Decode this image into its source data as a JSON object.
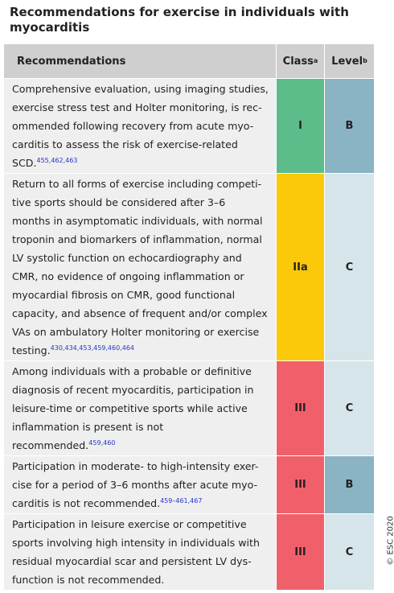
{
  "title": [
    "Recommendations for exercise in individuals with",
    "myocarditis"
  ],
  "header": {
    "recommendations": "Recommendations",
    "class": "Class",
    "class_note": "a",
    "level": "Level",
    "level_note": "b"
  },
  "rows": [
    {
      "lines": [
        "Comprehensive evaluation, using imaging studies,",
        "exercise stress test and Holter monitoring, is rec-",
        "ommended following recovery from acute myo-",
        "carditis to assess the risk of exercise-related",
        "SCD."
      ],
      "refs": "455,462,463",
      "class": "I",
      "level": "B",
      "class_color": "#5cbd8a",
      "level_color": "#8ab4c3"
    },
    {
      "lines": [
        "Return to all forms of exercise including competi-",
        "tive sports should be considered after 3–6",
        "months in asymptomatic individuals, with normal",
        "troponin and biomarkers of inflammation, normal",
        "LV systolic function on echocardiography and",
        "CMR, no evidence of ongoing inflammation or",
        "myocardial fibrosis on CMR, good functional",
        "capacity, and absence of frequent and/or complex",
        "VAs on ambulatory Holter monitoring or exercise",
        "testing."
      ],
      "refs": "430,434,453,459,460,464",
      "class": "IIa",
      "level": "C",
      "class_color": "#fbc90a",
      "level_color": "#d5e5ea"
    },
    {
      "lines": [
        "Among individuals with a probable or definitive",
        "diagnosis of recent myocarditis, participation in",
        "leisure-time or competitive sports while active",
        "inflammation is present is not",
        "recommended."
      ],
      "refs": "459,460",
      "class": "III",
      "level": "C",
      "class_color": "#f0606a",
      "level_color": "#d5e5ea"
    },
    {
      "lines": [
        "Participation in moderate- to high-intensity exer-",
        "cise for a period of 3–6 months after acute myo-",
        "carditis is not recommended."
      ],
      "refs": "459–461,467",
      "class": "III",
      "level": "B",
      "class_color": "#f0606a",
      "level_color": "#8ab4c3"
    },
    {
      "lines": [
        "Participation in leisure exercise or competitive",
        "sports involving high intensity in individuals with",
        "residual myocardial scar and persistent LV dys-",
        "function is not recommended."
      ],
      "class": "III",
      "level": "C",
      "class_color": "#f0606a",
      "level_color": "#d5e5ea"
    }
  ],
  "copyright": "© ESC 2020"
}
